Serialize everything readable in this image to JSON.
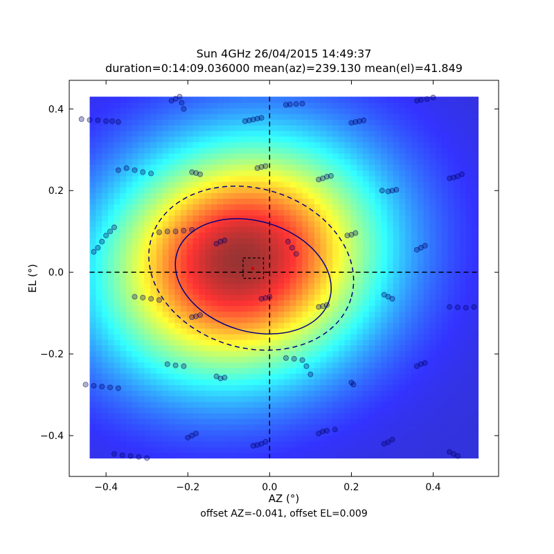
{
  "chart_data": {
    "type": "heatmap",
    "title_line1": "Sun 4GHz 26/04/2015 14:49:37",
    "title_line2": "duration=0:14:09.036000 mean(az)=239.130 mean(el)=41.849",
    "xlabel": "AZ (°)",
    "ylabel": "EL (°)",
    "footer": "offset AZ=-0.041, offset EL=0.009",
    "xlim": [
      -0.49,
      0.56
    ],
    "ylim": [
      -0.5,
      0.47
    ],
    "xticks": [
      -0.4,
      -0.2,
      0.0,
      0.2,
      0.4
    ],
    "xtick_labels": [
      "−0.4",
      "−0.2",
      "0.0",
      "0.2",
      "0.4"
    ],
    "yticks": [
      -0.4,
      -0.2,
      0.0,
      0.2,
      0.4
    ],
    "ytick_labels": [
      "−0.4",
      "−0.2",
      "0.0",
      "0.2",
      "0.4"
    ],
    "heatmap": {
      "extent_az": [
        -0.44,
        0.51
      ],
      "extent_el": [
        -0.455,
        0.43
      ],
      "peak_az": -0.07,
      "peak_el": 0.03,
      "colormap": "jet",
      "alpha": 0.8
    },
    "ellipses": [
      {
        "style": "solid",
        "center": [
          -0.04,
          -0.01
        ],
        "rx": 0.195,
        "ry": 0.135,
        "angle_deg": -17,
        "color": "#000080"
      },
      {
        "style": "dashed",
        "center": [
          -0.045,
          0.01
        ],
        "rx": 0.255,
        "ry": 0.195,
        "angle_deg": -17,
        "color": "#000080"
      }
    ],
    "crosshair_az": 0.0,
    "crosshair_el": 0.0,
    "offset_box": {
      "az": [
        -0.065,
        -0.015
      ],
      "el": [
        -0.015,
        0.035
      ]
    },
    "offset_point": {
      "az": -0.041,
      "el": 0.009
    },
    "scan_color": "#000066",
    "scan_points": [
      {
        "az": -0.46,
        "el": 0.375
      },
      {
        "az": -0.44,
        "el": 0.373
      },
      {
        "az": -0.42,
        "el": 0.372
      },
      {
        "az": -0.4,
        "el": 0.37
      },
      {
        "az": -0.385,
        "el": 0.37
      },
      {
        "az": -0.37,
        "el": 0.368
      },
      {
        "az": -0.24,
        "el": 0.42
      },
      {
        "az": -0.23,
        "el": 0.425
      },
      {
        "az": -0.22,
        "el": 0.43
      },
      {
        "az": -0.215,
        "el": 0.415
      },
      {
        "az": -0.21,
        "el": 0.4
      },
      {
        "az": -0.06,
        "el": 0.37
      },
      {
        "az": -0.05,
        "el": 0.372
      },
      {
        "az": -0.04,
        "el": 0.374
      },
      {
        "az": -0.03,
        "el": 0.376
      },
      {
        "az": -0.02,
        "el": 0.378
      },
      {
        "az": 0.04,
        "el": 0.41
      },
      {
        "az": 0.05,
        "el": 0.411
      },
      {
        "az": 0.065,
        "el": 0.412
      },
      {
        "az": 0.08,
        "el": 0.413
      },
      {
        "az": 0.2,
        "el": 0.366
      },
      {
        "az": 0.21,
        "el": 0.368
      },
      {
        "az": 0.22,
        "el": 0.37
      },
      {
        "az": 0.23,
        "el": 0.372
      },
      {
        "az": 0.36,
        "el": 0.42
      },
      {
        "az": 0.37,
        "el": 0.422
      },
      {
        "az": 0.385,
        "el": 0.424
      },
      {
        "az": 0.4,
        "el": 0.428
      },
      {
        "az": -0.37,
        "el": 0.25
      },
      {
        "az": -0.35,
        "el": 0.255
      },
      {
        "az": -0.33,
        "el": 0.25
      },
      {
        "az": -0.31,
        "el": 0.245
      },
      {
        "az": -0.29,
        "el": 0.242
      },
      {
        "az": -0.19,
        "el": 0.245
      },
      {
        "az": -0.18,
        "el": 0.243
      },
      {
        "az": -0.17,
        "el": 0.24
      },
      {
        "az": -0.03,
        "el": 0.255
      },
      {
        "az": -0.02,
        "el": 0.258
      },
      {
        "az": -0.01,
        "el": 0.26
      },
      {
        "az": 0.12,
        "el": 0.227
      },
      {
        "az": 0.13,
        "el": 0.23
      },
      {
        "az": 0.14,
        "el": 0.234
      },
      {
        "az": 0.15,
        "el": 0.236
      },
      {
        "az": 0.275,
        "el": 0.2
      },
      {
        "az": 0.29,
        "el": 0.198
      },
      {
        "az": 0.3,
        "el": 0.2
      },
      {
        "az": 0.31,
        "el": 0.202
      },
      {
        "az": 0.44,
        "el": 0.23
      },
      {
        "az": 0.45,
        "el": 0.232
      },
      {
        "az": 0.46,
        "el": 0.235
      },
      {
        "az": 0.47,
        "el": 0.24
      },
      {
        "az": -0.43,
        "el": 0.05
      },
      {
        "az": -0.42,
        "el": 0.06
      },
      {
        "az": -0.41,
        "el": 0.075
      },
      {
        "az": -0.4,
        "el": 0.09
      },
      {
        "az": -0.39,
        "el": 0.1
      },
      {
        "az": -0.38,
        "el": 0.11
      },
      {
        "az": -0.27,
        "el": 0.098
      },
      {
        "az": -0.25,
        "el": 0.1
      },
      {
        "az": -0.23,
        "el": 0.1
      },
      {
        "az": -0.21,
        "el": 0.102
      },
      {
        "az": -0.19,
        "el": 0.104
      },
      {
        "az": -0.13,
        "el": 0.07
      },
      {
        "az": -0.12,
        "el": 0.075
      },
      {
        "az": -0.11,
        "el": 0.078
      },
      {
        "az": 0.065,
        "el": 0.045
      },
      {
        "az": 0.055,
        "el": 0.06
      },
      {
        "az": 0.045,
        "el": 0.075
      },
      {
        "az": 0.19,
        "el": 0.09
      },
      {
        "az": 0.2,
        "el": 0.092
      },
      {
        "az": 0.21,
        "el": 0.096
      },
      {
        "az": 0.36,
        "el": 0.055
      },
      {
        "az": 0.37,
        "el": 0.06
      },
      {
        "az": 0.38,
        "el": 0.065
      },
      {
        "az": -0.33,
        "el": -0.06
      },
      {
        "az": -0.31,
        "el": -0.062
      },
      {
        "az": -0.29,
        "el": -0.065
      },
      {
        "az": -0.27,
        "el": -0.068
      },
      {
        "az": -0.19,
        "el": -0.11
      },
      {
        "az": -0.18,
        "el": -0.108
      },
      {
        "az": -0.17,
        "el": -0.105
      },
      {
        "az": -0.02,
        "el": -0.065
      },
      {
        "az": -0.01,
        "el": -0.063
      },
      {
        "az": 0.0,
        "el": -0.06
      },
      {
        "az": 0.12,
        "el": -0.085
      },
      {
        "az": 0.13,
        "el": -0.083
      },
      {
        "az": 0.14,
        "el": -0.08
      },
      {
        "az": 0.28,
        "el": -0.055
      },
      {
        "az": 0.29,
        "el": -0.06
      },
      {
        "az": 0.3,
        "el": -0.065
      },
      {
        "az": 0.44,
        "el": -0.085
      },
      {
        "az": 0.46,
        "el": -0.086
      },
      {
        "az": 0.48,
        "el": -0.087
      },
      {
        "az": 0.5,
        "el": -0.085
      },
      {
        "az": -0.25,
        "el": -0.225
      },
      {
        "az": -0.23,
        "el": -0.228
      },
      {
        "az": -0.21,
        "el": -0.23
      },
      {
        "az": -0.13,
        "el": -0.255
      },
      {
        "az": -0.12,
        "el": -0.26
      },
      {
        "az": -0.11,
        "el": -0.258
      },
      {
        "az": 0.04,
        "el": -0.21
      },
      {
        "az": 0.06,
        "el": -0.212
      },
      {
        "az": 0.08,
        "el": -0.215
      },
      {
        "az": 0.09,
        "el": -0.23
      },
      {
        "az": 0.1,
        "el": -0.25
      },
      {
        "az": 0.2,
        "el": -0.27
      },
      {
        "az": 0.205,
        "el": -0.275
      },
      {
        "az": 0.36,
        "el": -0.23
      },
      {
        "az": 0.37,
        "el": -0.225
      },
      {
        "az": 0.38,
        "el": -0.222
      },
      {
        "az": -0.45,
        "el": -0.275
      },
      {
        "az": -0.43,
        "el": -0.278
      },
      {
        "az": -0.41,
        "el": -0.28
      },
      {
        "az": -0.39,
        "el": -0.282
      },
      {
        "az": -0.37,
        "el": -0.284
      },
      {
        "az": -0.2,
        "el": -0.405
      },
      {
        "az": -0.19,
        "el": -0.4
      },
      {
        "az": -0.18,
        "el": -0.395
      },
      {
        "az": -0.04,
        "el": -0.425
      },
      {
        "az": -0.03,
        "el": -0.423
      },
      {
        "az": -0.02,
        "el": -0.42
      },
      {
        "az": -0.01,
        "el": -0.415
      },
      {
        "az": 0.12,
        "el": -0.395
      },
      {
        "az": 0.13,
        "el": -0.39
      },
      {
        "az": 0.14,
        "el": -0.388
      },
      {
        "az": 0.16,
        "el": -0.385
      },
      {
        "az": 0.28,
        "el": -0.42
      },
      {
        "az": 0.29,
        "el": -0.416
      },
      {
        "az": 0.3,
        "el": -0.41
      },
      {
        "az": 0.44,
        "el": -0.44
      },
      {
        "az": 0.45,
        "el": -0.445
      },
      {
        "az": 0.46,
        "el": -0.45
      },
      {
        "az": -0.38,
        "el": -0.445
      },
      {
        "az": -0.36,
        "el": -0.448
      },
      {
        "az": -0.34,
        "el": -0.45
      },
      {
        "az": -0.32,
        "el": -0.452
      },
      {
        "az": -0.3,
        "el": -0.455
      }
    ]
  }
}
